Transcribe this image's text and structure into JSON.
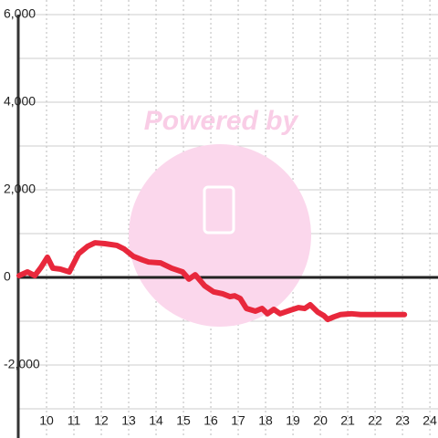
{
  "chart_data": {
    "type": "line",
    "watermark": "Powered by",
    "x": [
      9.0,
      9.3,
      9.57,
      9.8,
      10.03,
      10.23,
      10.5,
      10.83,
      11.17,
      11.5,
      11.77,
      12.13,
      12.57,
      12.83,
      13.17,
      13.5,
      13.73,
      14.17,
      14.57,
      14.97,
      15.2,
      15.43,
      15.77,
      16.1,
      16.43,
      16.7,
      16.87,
      17.07,
      17.3,
      17.63,
      17.87,
      18.07,
      18.3,
      18.53,
      18.9,
      19.2,
      19.43,
      19.63,
      19.9,
      20.13,
      20.27,
      20.5,
      20.73,
      21.13,
      21.47,
      23.07
    ],
    "series": [
      {
        "color": "#e8283c",
        "values": [
          40,
          125,
          40,
          230,
          460,
          210,
          190,
          125,
          540,
          710,
          790,
          770,
          730,
          650,
          480,
          400,
          350,
          330,
          210,
          125,
          -40,
          60,
          -190,
          -330,
          -375,
          -440,
          -420,
          -480,
          -710,
          -770,
          -710,
          -830,
          -730,
          -830,
          -750,
          -690,
          -710,
          -625,
          -790,
          -875,
          -960,
          -900,
          -850,
          -830,
          -850,
          -850
        ]
      }
    ],
    "xlim": [
      9,
      24.33
    ],
    "xticks": [
      10,
      11,
      12,
      13,
      14,
      15,
      16,
      17,
      18,
      19,
      20,
      21,
      22,
      23,
      24
    ],
    "ylim": [
      -3667,
      6333
    ],
    "yticks": [
      {
        "value": -2000,
        "label": "-2,000"
      },
      0,
      {
        "value": 2000,
        "label": "2,000"
      },
      {
        "value": 4000,
        "label": "4,000"
      },
      {
        "value": 6000,
        "label": "6,000"
      }
    ],
    "y_minor_ticks": [
      -3000,
      -1000,
      1000,
      3000,
      5000
    ],
    "grid": true
  }
}
